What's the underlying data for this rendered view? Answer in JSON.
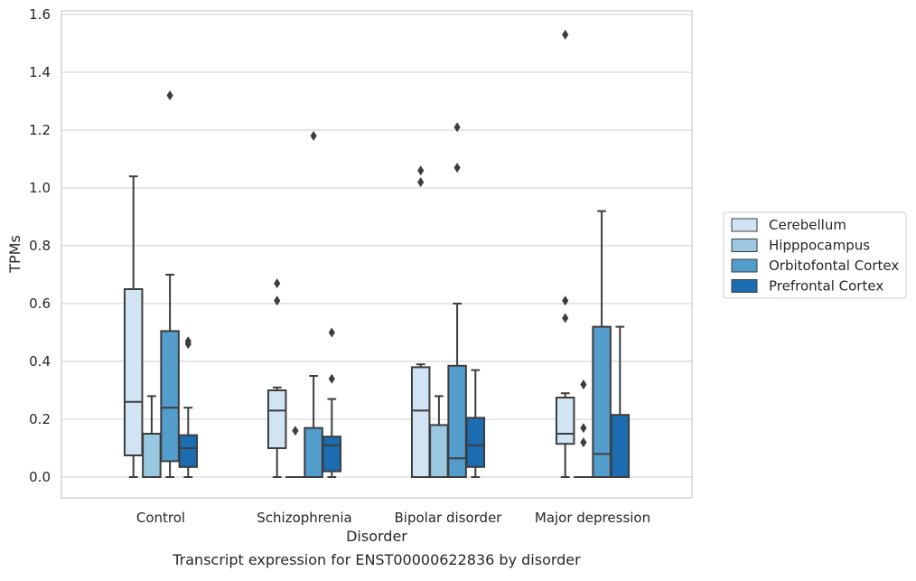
{
  "chart_data": {
    "type": "box",
    "title": "",
    "caption": "Transcript expression for ENST00000622836 by disorder",
    "xlabel": "Disorder",
    "ylabel": "TPMs",
    "ylim": [
      -0.07,
      1.61
    ],
    "yticks": [
      "0.0",
      "0.2",
      "0.4",
      "0.6",
      "0.8",
      "1.0",
      "1.2",
      "1.4",
      "1.6"
    ],
    "categories": [
      "Control",
      "Schizophrenia",
      "Bipolar disorder",
      "Major depression"
    ],
    "grid": "horizontal",
    "legend_position": "right",
    "series": [
      {
        "name": "Cerebellum",
        "color": "#d2e3f3",
        "boxes": [
          {
            "q1": 0.075,
            "median": 0.26,
            "q3": 0.65,
            "whisker_low": 0.0,
            "whisker_high": 1.04,
            "outliers": []
          },
          {
            "q1": 0.1,
            "median": 0.23,
            "q3": 0.3,
            "whisker_low": 0.0,
            "whisker_high": 0.31,
            "outliers": [
              0.61,
              0.67
            ]
          },
          {
            "q1": 0.0,
            "median": 0.23,
            "q3": 0.38,
            "whisker_low": 0.0,
            "whisker_high": 0.39,
            "outliers": [
              1.02,
              1.06
            ]
          },
          {
            "q1": 0.115,
            "median": 0.15,
            "q3": 0.275,
            "whisker_low": 0.0,
            "whisker_high": 0.29,
            "outliers": [
              0.55,
              0.61,
              1.53
            ]
          }
        ]
      },
      {
        "name": "Hipppocampus",
        "color": "#9ac8e0",
        "boxes": [
          {
            "q1": 0.0,
            "median": 0.0,
            "q3": 0.15,
            "whisker_low": 0.0,
            "whisker_high": 0.28,
            "outliers": []
          },
          {
            "q1": 0.0,
            "median": 0.0,
            "q3": 0.0,
            "whisker_low": 0.0,
            "whisker_high": 0.0,
            "outliers": [
              0.16
            ]
          },
          {
            "q1": 0.0,
            "median": 0.0,
            "q3": 0.18,
            "whisker_low": 0.0,
            "whisker_high": 0.28,
            "outliers": []
          },
          {
            "q1": 0.0,
            "median": 0.0,
            "q3": 0.0,
            "whisker_low": 0.0,
            "whisker_high": 0.0,
            "outliers": [
              0.12,
              0.17,
              0.32
            ]
          }
        ]
      },
      {
        "name": "Orbitofontal Cortex",
        "color": "#529dcc",
        "boxes": [
          {
            "q1": 0.055,
            "median": 0.24,
            "q3": 0.505,
            "whisker_low": 0.0,
            "whisker_high": 0.7,
            "outliers": [
              1.32
            ]
          },
          {
            "q1": 0.0,
            "median": 0.0,
            "q3": 0.17,
            "whisker_low": 0.0,
            "whisker_high": 0.35,
            "outliers": [
              1.18
            ]
          },
          {
            "q1": 0.0,
            "median": 0.065,
            "q3": 0.385,
            "whisker_low": 0.0,
            "whisker_high": 0.6,
            "outliers": [
              1.07,
              1.21
            ]
          },
          {
            "q1": 0.0,
            "median": 0.08,
            "q3": 0.52,
            "whisker_low": 0.0,
            "whisker_high": 0.92,
            "outliers": []
          }
        ]
      },
      {
        "name": "Prefrontal Cortex",
        "color": "#1c6cb1",
        "boxes": [
          {
            "q1": 0.035,
            "median": 0.1,
            "q3": 0.145,
            "whisker_low": 0.0,
            "whisker_high": 0.24,
            "outliers": [
              0.46,
              0.47
            ]
          },
          {
            "q1": 0.02,
            "median": 0.11,
            "q3": 0.14,
            "whisker_low": 0.0,
            "whisker_high": 0.27,
            "outliers": [
              0.34,
              0.5
            ]
          },
          {
            "q1": 0.035,
            "median": 0.11,
            "q3": 0.205,
            "whisker_low": 0.0,
            "whisker_high": 0.37,
            "outliers": []
          },
          {
            "q1": 0.0,
            "median": 0.0,
            "q3": 0.215,
            "whisker_low": 0.0,
            "whisker_high": 0.52,
            "outliers": []
          }
        ]
      }
    ]
  }
}
